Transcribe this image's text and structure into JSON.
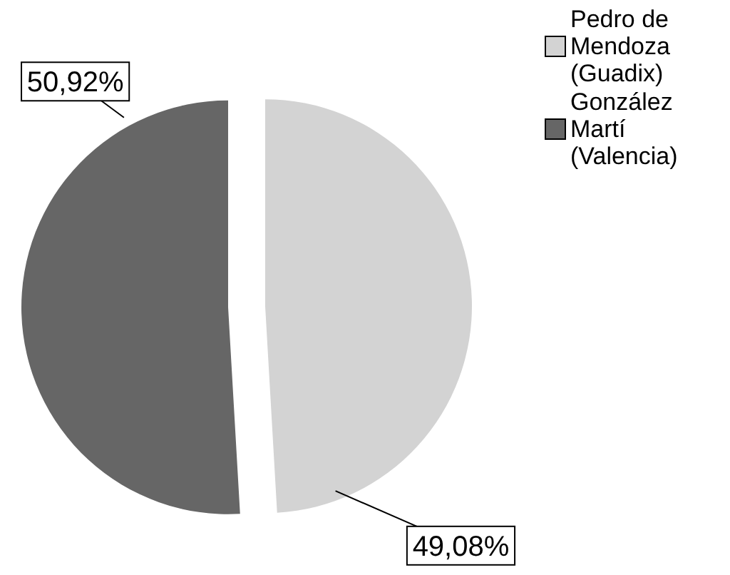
{
  "chart_data": {
    "type": "pie",
    "categories": [
      "Pedro de Mendoza (Guadix)",
      "González Martí (Valencia)"
    ],
    "values": [
      49.08,
      50.92
    ],
    "colors": [
      "#d3d3d3",
      "#666666"
    ],
    "value_labels": [
      "49,08%",
      "50,92%"
    ],
    "legend": "top right"
  }
}
